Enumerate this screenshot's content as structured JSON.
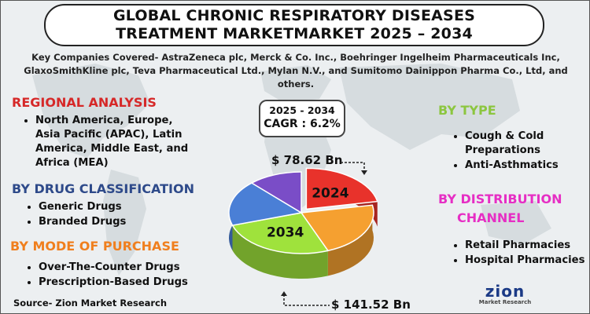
{
  "title": {
    "line1": "GLOBAL CHRONIC RESPIRATORY DISEASES",
    "line2": "TREATMENT MARKETMARKET 2025 – 2034"
  },
  "companies": "Key Companies Covered- AstraZeneca plc, Merck & Co. Inc., Boehringer Ingelheim Pharmaceuticals Inc, GlaxoSmithKline plc, Teva Pharmaceutical Ltd., Mylan N.V., and Sumitomo Dainippon Pharma Co., Ltd, and others.",
  "regional": {
    "heading": "REGIONAL ANALYSIS",
    "items": [
      "North America, Europe, Asia Pacific (APAC), Latin America, Middle East, and Africa (MEA)"
    ]
  },
  "drug_class": {
    "heading": "BY DRUG CLASSIFICATION",
    "items": [
      "Generic Drugs",
      "Branded Drugs"
    ]
  },
  "mode": {
    "heading": "BY MODE OF PURCHASE",
    "items": [
      "Over-The-Counter Drugs",
      "Prescription-Based Drugs"
    ]
  },
  "type": {
    "heading": "BY TYPE",
    "items": [
      "Cough & Cold Preparations",
      "Anti-Asthmatics"
    ]
  },
  "distribution": {
    "heading_line1": "BY DISTRIBUTION",
    "heading_line2": "CHANNEL",
    "items": [
      "Retail Pharmacies",
      "Hospital Pharmacies"
    ]
  },
  "cagr": {
    "period": "2025 - 2034",
    "value": "CAGR : 6.2%"
  },
  "source": "Source- Zion Market Research",
  "logo": {
    "word": "zion",
    "sub": "Market Research"
  },
  "colors": {
    "regional": "#d62828",
    "drug_class": "#2e4a8a",
    "mode": "#f07f1e",
    "type": "#8cc63f",
    "distribution": "#e62ec4"
  },
  "chart_data": {
    "type": "pie",
    "title": "",
    "slices": [
      {
        "label": "2024",
        "value": 22,
        "color": "#e8322b"
      },
      {
        "label": "",
        "value": 22,
        "color": "#f5a030"
      },
      {
        "label": "2034",
        "value": 26,
        "color": "#9fe23c"
      },
      {
        "label": "",
        "value": 18,
        "color": "#4a7fd6"
      },
      {
        "label": "",
        "value": 12,
        "color": "#7a4dc7"
      }
    ],
    "annotations": {
      "start_value": "$ 78.62 Bn",
      "end_value": "$ 141.52 Bn"
    },
    "legend": "none"
  }
}
